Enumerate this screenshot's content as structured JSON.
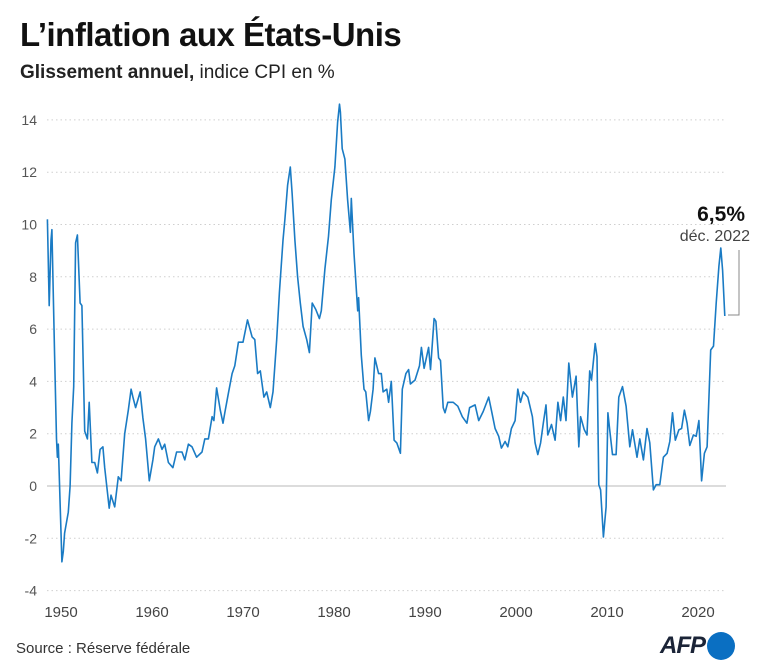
{
  "header": {
    "title": "L’inflation aux États-Unis",
    "subtitle_bold": "Glissement annuel,",
    "subtitle_rest": " indice CPI en %"
  },
  "footer": {
    "source": "Source : Réserve fédérale",
    "logo": "AFP"
  },
  "chart_data": {
    "type": "line",
    "title": "L’inflation aux États-Unis",
    "subtitle": "Glissement annuel, indice CPI en %",
    "xlabel": "",
    "ylabel": "",
    "xlim": [
      1948,
      2023
    ],
    "ylim": [
      -4,
      14
    ],
    "yticks": [
      -4,
      -2,
      0,
      2,
      4,
      6,
      8,
      10,
      12,
      14
    ],
    "xticks": [
      1950,
      1960,
      1970,
      1980,
      1990,
      2000,
      2010,
      2020
    ],
    "grid": "horizontal dotted",
    "line_color": "#1a7bc4",
    "annotation": {
      "value": "6,5%",
      "label": "déc. 2022"
    },
    "series": [
      {
        "points": [
          [
            1948.5,
            10.2
          ],
          [
            1948.7,
            6.9
          ],
          [
            1948.9,
            9.4
          ],
          [
            1949.0,
            9.8
          ],
          [
            1949.3,
            5.0
          ],
          [
            1949.5,
            1.8
          ],
          [
            1949.6,
            1.1
          ],
          [
            1949.7,
            1.6
          ],
          [
            1950.1,
            -2.9
          ],
          [
            1950.25,
            -2.5
          ],
          [
            1950.4,
            -1.8
          ],
          [
            1950.8,
            -1.0
          ],
          [
            1951.0,
            0.0
          ],
          [
            1951.2,
            2.4
          ],
          [
            1951.4,
            3.8
          ],
          [
            1951.6,
            9.3
          ],
          [
            1951.8,
            9.6
          ],
          [
            1952.1,
            7.0
          ],
          [
            1952.3,
            6.9
          ],
          [
            1952.6,
            2.1
          ],
          [
            1952.9,
            1.8
          ],
          [
            1953.1,
            3.2
          ],
          [
            1953.4,
            0.9
          ],
          [
            1953.7,
            0.9
          ],
          [
            1954.0,
            0.5
          ],
          [
            1954.3,
            1.4
          ],
          [
            1954.6,
            1.5
          ],
          [
            1954.8,
            0.7
          ],
          [
            1955.3,
            -0.85
          ],
          [
            1955.5,
            -0.35
          ],
          [
            1955.9,
            -0.8
          ],
          [
            1956.3,
            0.35
          ],
          [
            1956.6,
            0.2
          ],
          [
            1957.0,
            2.0
          ],
          [
            1957.4,
            2.9
          ],
          [
            1957.7,
            3.7
          ],
          [
            1957.9,
            3.4
          ],
          [
            1958.2,
            3.0
          ],
          [
            1958.7,
            3.6
          ],
          [
            1959.0,
            2.6
          ],
          [
            1959.3,
            1.8
          ],
          [
            1959.7,
            0.2
          ],
          [
            1960.1,
            1.0
          ],
          [
            1960.3,
            1.5
          ],
          [
            1960.7,
            1.8
          ],
          [
            1961.1,
            1.4
          ],
          [
            1961.4,
            1.6
          ],
          [
            1961.8,
            0.9
          ],
          [
            1962.3,
            0.7
          ],
          [
            1962.7,
            1.3
          ],
          [
            1963.3,
            1.3
          ],
          [
            1963.6,
            1.0
          ],
          [
            1964.0,
            1.6
          ],
          [
            1964.4,
            1.5
          ],
          [
            1964.9,
            1.1
          ],
          [
            1965.5,
            1.3
          ],
          [
            1965.8,
            1.8
          ],
          [
            1966.2,
            1.8
          ],
          [
            1966.6,
            2.65
          ],
          [
            1966.8,
            2.5
          ],
          [
            1967.1,
            3.75
          ],
          [
            1967.5,
            2.9
          ],
          [
            1967.8,
            2.4
          ],
          [
            1968.0,
            2.8
          ],
          [
            1968.4,
            3.55
          ],
          [
            1968.8,
            4.3
          ],
          [
            1969.1,
            4.6
          ],
          [
            1969.5,
            5.5
          ],
          [
            1970.0,
            5.5
          ],
          [
            1970.5,
            6.35
          ],
          [
            1971.0,
            5.7
          ],
          [
            1971.3,
            5.6
          ],
          [
            1971.6,
            4.3
          ],
          [
            1971.9,
            4.4
          ],
          [
            1972.3,
            3.4
          ],
          [
            1972.6,
            3.6
          ],
          [
            1973.0,
            3.0
          ],
          [
            1973.3,
            3.6
          ],
          [
            1973.7,
            5.6
          ],
          [
            1974.0,
            7.4
          ],
          [
            1974.4,
            9.4
          ],
          [
            1974.6,
            10.2
          ],
          [
            1974.9,
            11.5
          ],
          [
            1975.2,
            12.2
          ],
          [
            1975.4,
            11.2
          ],
          [
            1975.7,
            9.4
          ],
          [
            1976.0,
            8.0
          ],
          [
            1976.3,
            7.0
          ],
          [
            1976.6,
            6.1
          ],
          [
            1977.0,
            5.6
          ],
          [
            1977.3,
            5.1
          ],
          [
            1977.6,
            7.0
          ],
          [
            1978.0,
            6.75
          ],
          [
            1978.4,
            6.4
          ],
          [
            1978.6,
            6.7
          ],
          [
            1979.0,
            8.3
          ],
          [
            1979.4,
            9.55
          ],
          [
            1979.7,
            10.95
          ],
          [
            1980.1,
            12.2
          ],
          [
            1980.4,
            13.9
          ],
          [
            1980.6,
            14.6
          ],
          [
            1980.7,
            14.3
          ],
          [
            1980.9,
            12.9
          ],
          [
            1981.2,
            12.5
          ],
          [
            1981.5,
            10.95
          ],
          [
            1981.8,
            9.7
          ],
          [
            1981.9,
            11.0
          ],
          [
            1982.2,
            8.9
          ],
          [
            1982.6,
            6.7
          ],
          [
            1982.7,
            7.2
          ],
          [
            1983.0,
            5.0
          ],
          [
            1983.3,
            3.7
          ],
          [
            1983.5,
            3.6
          ],
          [
            1983.8,
            2.5
          ],
          [
            1984.0,
            2.85
          ],
          [
            1984.3,
            3.7
          ],
          [
            1984.5,
            4.9
          ],
          [
            1984.9,
            4.3
          ],
          [
            1985.2,
            4.3
          ],
          [
            1985.4,
            3.6
          ],
          [
            1985.8,
            3.7
          ],
          [
            1986.0,
            3.2
          ],
          [
            1986.3,
            4.0
          ],
          [
            1986.6,
            1.75
          ],
          [
            1986.9,
            1.65
          ],
          [
            1987.3,
            1.25
          ],
          [
            1987.5,
            3.7
          ],
          [
            1987.9,
            4.3
          ],
          [
            1988.2,
            4.45
          ],
          [
            1988.4,
            3.9
          ],
          [
            1988.9,
            4.05
          ],
          [
            1989.4,
            4.6
          ],
          [
            1989.6,
            5.3
          ],
          [
            1989.9,
            4.5
          ],
          [
            1990.4,
            5.3
          ],
          [
            1990.6,
            4.45
          ],
          [
            1991.0,
            6.4
          ],
          [
            1991.2,
            6.3
          ],
          [
            1991.5,
            4.9
          ],
          [
            1991.7,
            4.8
          ],
          [
            1992.0,
            3.0
          ],
          [
            1992.2,
            2.8
          ],
          [
            1992.5,
            3.2
          ],
          [
            1993.1,
            3.2
          ],
          [
            1993.6,
            3.05
          ],
          [
            1994.1,
            2.65
          ],
          [
            1994.6,
            2.4
          ],
          [
            1994.9,
            3.0
          ],
          [
            1995.5,
            3.1
          ],
          [
            1995.9,
            2.5
          ],
          [
            1996.4,
            2.85
          ],
          [
            1997.0,
            3.4
          ],
          [
            1997.3,
            2.9
          ],
          [
            1997.7,
            2.2
          ],
          [
            1998.1,
            1.9
          ],
          [
            1998.4,
            1.45
          ],
          [
            1998.8,
            1.7
          ],
          [
            1999.1,
            1.5
          ],
          [
            1999.5,
            2.2
          ],
          [
            1999.9,
            2.5
          ],
          [
            2000.2,
            3.7
          ],
          [
            2000.5,
            3.2
          ],
          [
            2000.8,
            3.6
          ],
          [
            2001.3,
            3.4
          ],
          [
            2001.8,
            2.65
          ],
          [
            2002.1,
            1.65
          ],
          [
            2002.4,
            1.2
          ],
          [
            2002.7,
            1.65
          ],
          [
            2003.0,
            2.4
          ],
          [
            2003.3,
            3.1
          ],
          [
            2003.5,
            1.95
          ],
          [
            2003.9,
            2.35
          ],
          [
            2004.3,
            1.75
          ],
          [
            2004.6,
            3.2
          ],
          [
            2004.9,
            2.5
          ],
          [
            2005.2,
            3.4
          ],
          [
            2005.5,
            2.5
          ],
          [
            2005.8,
            4.7
          ],
          [
            2006.2,
            3.4
          ],
          [
            2006.6,
            4.2
          ],
          [
            2006.9,
            1.5
          ],
          [
            2007.1,
            2.65
          ],
          [
            2007.5,
            2.15
          ],
          [
            2007.8,
            1.95
          ],
          [
            2008.1,
            4.4
          ],
          [
            2008.3,
            4.05
          ],
          [
            2008.7,
            5.45
          ],
          [
            2008.9,
            4.95
          ],
          [
            2009.1,
            0.05
          ],
          [
            2009.3,
            -0.15
          ],
          [
            2009.6,
            -1.95
          ],
          [
            2009.9,
            -0.8
          ],
          [
            2010.1,
            2.8
          ],
          [
            2010.3,
            2.15
          ],
          [
            2010.6,
            1.2
          ],
          [
            2011.0,
            1.2
          ],
          [
            2011.3,
            3.4
          ],
          [
            2011.7,
            3.8
          ],
          [
            2012.1,
            3.05
          ],
          [
            2012.5,
            1.5
          ],
          [
            2012.8,
            2.15
          ],
          [
            2013.3,
            1.1
          ],
          [
            2013.6,
            1.8
          ],
          [
            2014.0,
            1.0
          ],
          [
            2014.4,
            2.2
          ],
          [
            2014.7,
            1.65
          ],
          [
            2015.1,
            -0.15
          ],
          [
            2015.4,
            0.05
          ],
          [
            2015.8,
            0.05
          ],
          [
            2016.2,
            1.1
          ],
          [
            2016.6,
            1.25
          ],
          [
            2016.9,
            1.7
          ],
          [
            2017.2,
            2.8
          ],
          [
            2017.5,
            1.75
          ],
          [
            2017.9,
            2.15
          ],
          [
            2018.2,
            2.2
          ],
          [
            2018.5,
            2.9
          ],
          [
            2018.8,
            2.4
          ],
          [
            2019.1,
            1.55
          ],
          [
            2019.5,
            1.95
          ],
          [
            2019.8,
            1.9
          ],
          [
            2020.1,
            2.5
          ],
          [
            2020.4,
            0.2
          ],
          [
            2020.7,
            1.25
          ],
          [
            2021.0,
            1.5
          ],
          [
            2021.4,
            5.2
          ],
          [
            2021.7,
            5.35
          ],
          [
            2022.0,
            7.0
          ],
          [
            2022.3,
            8.4
          ],
          [
            2022.5,
            9.1
          ],
          [
            2022.7,
            8.25
          ],
          [
            2022.95,
            6.5
          ]
        ]
      }
    ]
  }
}
